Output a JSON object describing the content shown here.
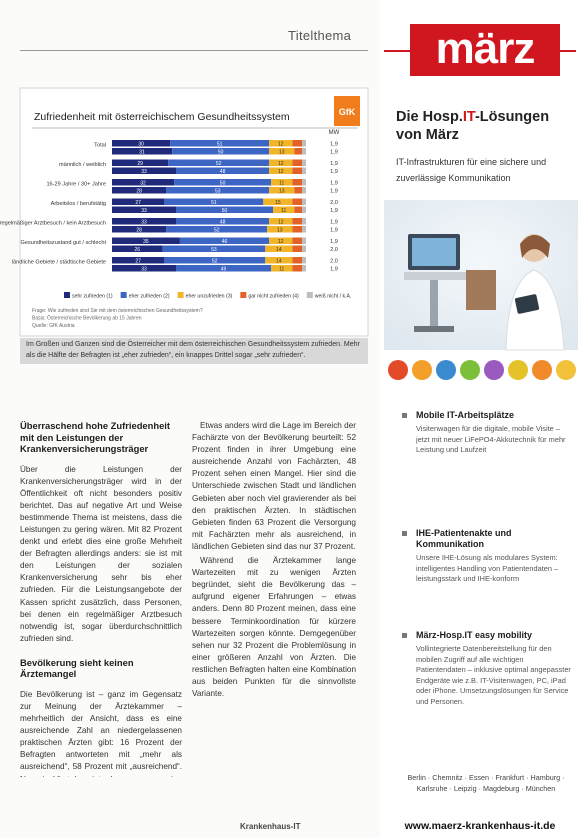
{
  "header": {
    "section": "Titelthema"
  },
  "chart_data": {
    "type": "stacked-bar-horizontal",
    "title": "Zufriedenheit mit österreichischem Gesundheitssystem",
    "brand": "GfK",
    "categories": [
      "Total",
      null,
      "männlich / weiblich",
      null,
      "16-29 Jahre / 30+ Jahre",
      null,
      "Arbeitslos / berufstätig",
      null,
      "regelmäßiger Arztbesuch / kein Arztbesuch",
      null,
      "Gesundheitszustand gut / schlecht",
      null,
      "ländliche Gebiete / städtische Gebiete",
      null
    ],
    "xlim": [
      0,
      100
    ],
    "series": [
      {
        "name": "sehr zufrieden (1)",
        "color": "#1f2a7a",
        "values": [
          30,
          31,
          29,
          33,
          32,
          28,
          27,
          33,
          33,
          28,
          35,
          26,
          27,
          33
        ]
      },
      {
        "name": "eher zufrieden (2)",
        "color": "#3d66c4",
        "values": [
          51,
          50,
          52,
          48,
          50,
          53,
          51,
          50,
          48,
          52,
          46,
          53,
          52,
          49
        ]
      },
      {
        "name": "eher unzufrieden (3)",
        "color": "#f2b428",
        "values": [
          12,
          13,
          12,
          12,
          11,
          13,
          15,
          11,
          12,
          13,
          12,
          14,
          14,
          11
        ]
      },
      {
        "name": "gar nicht zufrieden (4)",
        "color": "#e2622a",
        "values": [
          5,
          4,
          5,
          5,
          5,
          4,
          5,
          4,
          5,
          5,
          5,
          5,
          5,
          5
        ]
      },
      {
        "name": "weiß nicht / k.A.",
        "color": "#bdbdbd",
        "values": [
          2,
          2,
          2,
          2,
          2,
          2,
          2,
          2,
          2,
          2,
          2,
          2,
          2,
          2
        ]
      }
    ],
    "mean_values": {
      "label": "MW",
      "values": [
        1.9,
        1.9,
        1.9,
        1.9,
        1.9,
        1.9,
        2.0,
        1.9,
        1.9,
        1.9,
        1.9,
        2.0,
        2.0,
        1.9
      ],
      "value_labels": [
        "1,9",
        "1,9",
        "1,9",
        "1,9",
        "1,9",
        "1,9",
        "2,0",
        "1,9",
        "1,9",
        "1,9",
        "1,9",
        "2,0",
        "2,0",
        "1,9"
      ]
    },
    "notes": [
      "Frage: Wie zufrieden sind Sie mit dem österreichischen Gesundheitssystem?",
      "Basis: Österreichische Bevölkerung ab 15 Jahren",
      "Quelle: GfK Austria"
    ],
    "caption": "Im Großen und Ganzen sind die Österreicher mit dem österreichischen Gesundheitssystem zufrieden. Mehr als die Hälfte der Befragten ist „eher zufrieden“, ein knappes Drittel sogar „sehr zufrieden“."
  },
  "article": {
    "heading_1": "Überraschend hohe Zufriedenheit mit den Leistungen der Krankenversicherungsträger",
    "paragraphs_1": [
      "Über die Leistungen der Krankenversicherungsträger wird in der Öffentlichkeit oft nicht besonders positiv berichtet. Das auf negative Art und Weise bestimmende Thema ist meistens, dass die Leistungen zu gering wären. Mit 82 Prozent denkt und erlebt dies eine große Mehrheit der Befragten allerdings anders: sie ist mit den Leistungen der sozialen Krankenversicherung sehr bis eher zufrieden. Für die Leistungsangebote der Kassen spricht zusätzlich, dass Personen, bei denen ein regelmäßiger Arztbesuch notwendig ist, sogar überdurchschnittlich zufrieden sind."
    ],
    "heading_2": "Bevölkerung sieht keinen Ärztemangel",
    "paragraphs_2": [
      "Die Bevölkerung ist – ganz im Gegensatz zur Meinung der Ärztekammer – mehrheitlich der Ansicht, dass es eine ausreichende Zahl an niedergelassenen praktischen Ärzten gibt: 16 Prozent der Befragten antworteten mit „mehr als ausreichend“, 58 Prozent mit „ausreichend“. Nur ein Viertel meint, dass es zu wenige niedergelassene Praktiker gibt. Unterschiede in der Beurteilung gibt es allerdings zwischen städtischem und ländlichem Gebiet: am Land sehen 27 Prozent, in den Städten hingegen nur 19 Prozent einen Mangel an Praktikern.",
      "Etwas anders wird die Lage im Bereich der Fachärzte von der Bevölkerung beurteilt: 52 Prozent finden in ihrer Umgebung eine ausreichende Anzahl von Fachärzten, 48 Prozent sehen einen Mangel. Hier sind die Unterschiede zwischen Stadt und ländlichen Gebieten aber noch viel gravierender als bei den praktischen Ärzten. In städtischen Gebieten finden 63 Prozent die Versorgung mit Fachärzten mehr als ausreichend, in ländlichen Gebieten sind das nur 37 Prozent.",
      "Während die Ärztekammer lange Wartezeiten mit zu wenigen Ärzten begründet, sieht die Bevölkerung das – aufgrund eigener Erfahrungen – etwas anders. Denn 80 Prozent meinen, dass eine bessere Terminkoordination für kürzere Wartezeiten sorgen könnte. Demgegenüber sehen nur 32 Prozent die Problemlösung in einer größeren Anzahl von Ärzten. Die restlichen Befragten halten eine Kombination aus beiden Punkten für die sinnvollste Variante."
    ]
  },
  "footer": {
    "magazine": "Krankenhaus-IT"
  },
  "ad": {
    "logo": "märz",
    "title_before": "Die Hosp.",
    "title_highlight": "IT",
    "title_after": "-Lösungen von März",
    "subtitle": "IT-Infrastrukturen für eine sichere und zuverlässige Kommunikation",
    "bullets": [
      {
        "heading": "Mobile IT-Arbeitsplätze",
        "text": "Visitenwagen für die digitale, mobile Visite – jetzt mit neuer LiFePO4-Akkutechnik für mehr Leistung und Laufzeit"
      },
      {
        "heading": "IHE-Patientenakte und Kommunikation",
        "text": "Unsere IHE-Lösung als modulares System: intelligentes Handling von Patientendaten – leistungsstark und IHE-konform"
      },
      {
        "heading": "März-Hosp.IT easy mobility",
        "text": "Vollintegrierte Datenbereitstellung für den mobilen Zugriff auf alle wichtigen Patientendaten – inklusive optimal angepasster Endgeräte wie z.B. IT-Visitenwagen, PC, iPad oder iPhone. Umsetzungslösungen für Service und Personen."
      }
    ],
    "cities": "Berlin · Chemnitz · Essen · Frankfurt · Hamburg · Karlsruhe · Leipzig · Magdeburg · München",
    "url": "www.maerz-krankenhaus-it.de"
  }
}
